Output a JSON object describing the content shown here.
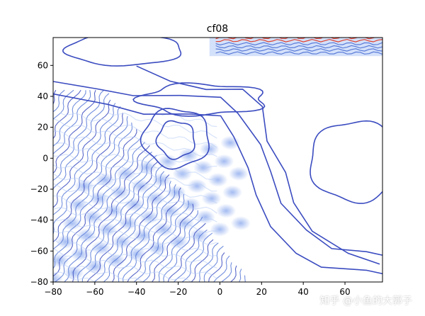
{
  "chart_data": {
    "type": "contour",
    "title": "cf08",
    "xlim": [
      -80,
      78
    ],
    "ylim": [
      -80,
      78
    ],
    "x_ticks": [
      -80,
      -60,
      -40,
      -20,
      0,
      20,
      40,
      60
    ],
    "y_ticks": [
      -80,
      -60,
      -40,
      -20,
      0,
      20,
      40,
      60
    ],
    "colormap": "coolwarm",
    "colors": {
      "low": "#3b4cc0",
      "mid_low": "#5a7bd8",
      "light": "#b8cdf6",
      "high": "#e0402e",
      "axes": "#000000"
    },
    "regions": {
      "dense_lattice_lower_left": {
        "x_range": [
          -80,
          10
        ],
        "y_range": [
          -80,
          40
        ],
        "orientation": "diagonal"
      },
      "hot_band_top": {
        "x_range": [
          -5,
          78
        ],
        "y_range": [
          66,
          78
        ]
      },
      "isolated_loop_right": {
        "x_range": [
          38,
          78
        ],
        "y_range": [
          -28,
          25
        ]
      },
      "isolated_loop_center": {
        "x_range": [
          -30,
          -12
        ],
        "y_range": [
          0,
          25
        ]
      },
      "isolated_loop_top_left": {
        "x_range": [
          -70,
          -20
        ],
        "y_range": [
          55,
          78
        ]
      }
    },
    "grid": false,
    "legend": "none"
  },
  "watermark": "知乎 @小鱼的大郭子"
}
